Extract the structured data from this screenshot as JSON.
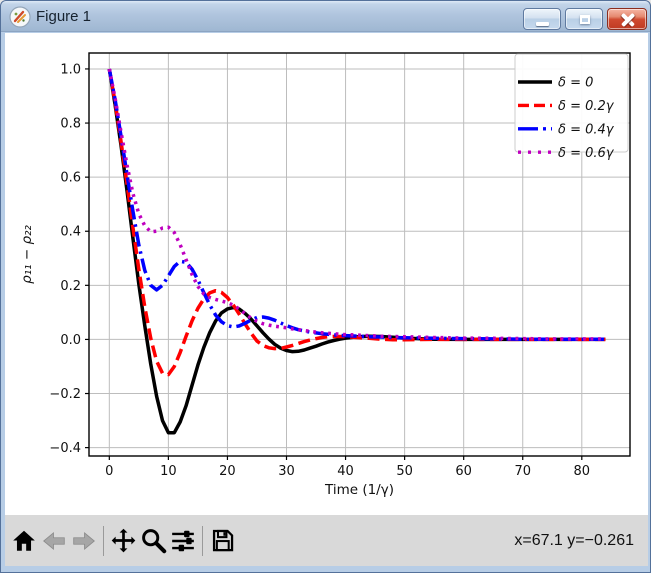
{
  "window": {
    "title": "Figure 1",
    "controls": [
      "minimize",
      "maximize",
      "close"
    ]
  },
  "chart_data": {
    "type": "line",
    "title": "",
    "xlabel": "Time (1/γ)",
    "ylabel": "ρ₁₁ − ρ₂₂",
    "xlim": [
      -3.44,
      88.16
    ],
    "ylim": [
      -0.431,
      1.059
    ],
    "xticks": [
      0,
      10,
      20,
      30,
      40,
      50,
      60,
      70,
      80
    ],
    "yticks": [
      -0.4,
      -0.2,
      0.0,
      0.2,
      0.4,
      0.6,
      0.8,
      1.0
    ],
    "grid": true,
    "grid_color": "#bdbdbd",
    "legend_position": "upper right",
    "x": [
      0,
      1,
      2,
      3,
      4,
      5,
      6,
      7,
      8,
      9,
      10,
      11,
      12,
      13,
      14,
      15,
      16,
      17,
      18,
      19,
      20,
      21,
      22,
      23,
      24,
      25,
      26,
      27,
      28,
      29,
      30,
      31,
      32,
      33,
      34,
      35,
      36,
      37,
      38,
      39,
      40,
      42,
      44,
      46,
      48,
      50,
      55,
      60,
      65,
      70,
      75,
      80,
      84
    ],
    "series": [
      {
        "name": "δ = 0",
        "color": "#000000",
        "style": "solid",
        "linewidth": 3.5,
        "values": [
          1.0,
          0.865,
          0.715,
          0.55,
          0.375,
          0.205,
          0.05,
          -0.09,
          -0.21,
          -0.3,
          -0.345,
          -0.345,
          -0.305,
          -0.245,
          -0.17,
          -0.095,
          -0.03,
          0.025,
          0.068,
          0.098,
          0.113,
          0.118,
          0.112,
          0.096,
          0.075,
          0.05,
          0.025,
          0.002,
          -0.018,
          -0.032,
          -0.041,
          -0.045,
          -0.044,
          -0.039,
          -0.032,
          -0.025,
          -0.017,
          -0.01,
          -0.004,
          0.001,
          0.005,
          0.01,
          0.012,
          0.011,
          0.008,
          0.005,
          0.001,
          0.0,
          0.0,
          0.0,
          0.0,
          0.0,
          0.0
        ]
      },
      {
        "name": "δ = 0.2γ",
        "color": "#ff0000",
        "style": "dashed",
        "linewidth": 3.5,
        "values": [
          1.0,
          0.875,
          0.73,
          0.575,
          0.415,
          0.26,
          0.12,
          0.005,
          -0.08,
          -0.125,
          -0.13,
          -0.1,
          -0.048,
          0.012,
          0.068,
          0.115,
          0.15,
          0.172,
          0.18,
          0.174,
          0.155,
          0.127,
          0.093,
          0.057,
          0.023,
          -0.006,
          -0.022,
          -0.031,
          -0.034,
          -0.033,
          -0.028,
          -0.022,
          -0.015,
          -0.008,
          -0.002,
          0.003,
          0.007,
          0.01,
          0.011,
          0.011,
          0.01,
          0.007,
          0.004,
          0.001,
          -0.001,
          -0.001,
          0.0,
          0.0,
          0.0,
          0.0,
          0.0,
          0.0,
          0.0
        ]
      },
      {
        "name": "δ = 0.4γ",
        "color": "#0000ff",
        "style": "dashdot",
        "linewidth": 3.5,
        "values": [
          1.0,
          0.885,
          0.75,
          0.61,
          0.475,
          0.35,
          0.255,
          0.2,
          0.183,
          0.2,
          0.235,
          0.27,
          0.289,
          0.285,
          0.26,
          0.22,
          0.173,
          0.128,
          0.09,
          0.065,
          0.051,
          0.046,
          0.05,
          0.06,
          0.072,
          0.081,
          0.083,
          0.079,
          0.071,
          0.061,
          0.051,
          0.043,
          0.036,
          0.031,
          0.027,
          0.024,
          0.021,
          0.019,
          0.017,
          0.015,
          0.014,
          0.012,
          0.01,
          0.009,
          0.007,
          0.006,
          0.004,
          0.003,
          0.002,
          0.001,
          0.001,
          0.001,
          0.001
        ]
      },
      {
        "name": "δ = 0.6γ",
        "color": "#bf00bf",
        "style": "dotted",
        "linewidth": 3.5,
        "values": [
          1.0,
          0.89,
          0.765,
          0.645,
          0.54,
          0.465,
          0.42,
          0.398,
          0.4,
          0.412,
          0.415,
          0.395,
          0.35,
          0.295,
          0.24,
          0.196,
          0.168,
          0.155,
          0.148,
          0.142,
          0.136,
          0.127,
          0.112,
          0.095,
          0.079,
          0.067,
          0.058,
          0.053,
          0.049,
          0.046,
          0.043,
          0.039,
          0.036,
          0.033,
          0.03,
          0.027,
          0.025,
          0.023,
          0.021,
          0.019,
          0.018,
          0.016,
          0.014,
          0.012,
          0.011,
          0.01,
          0.007,
          0.005,
          0.004,
          0.003,
          0.002,
          0.002,
          0.002
        ]
      }
    ]
  },
  "toolbar": {
    "buttons": [
      "home",
      "back",
      "forward",
      "pan",
      "zoom-to-rect",
      "configure-subplots",
      "save"
    ],
    "status": "x=67.1 y=−0.261"
  }
}
